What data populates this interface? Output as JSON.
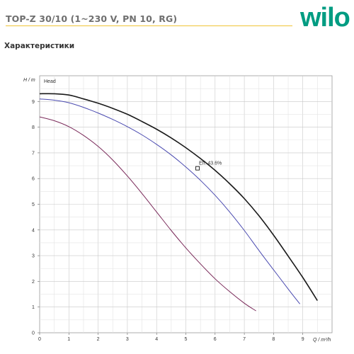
{
  "header": {
    "title": "TOP-Z 30/10 (1~230 V, PN 10, RG)",
    "logo_text": "wilo",
    "accent_color": "#f0c437",
    "logo_color": "#009c82"
  },
  "section": {
    "heading": "Характеристики"
  },
  "chart_data": {
    "type": "line",
    "title": "",
    "ylabel": "H / m",
    "xlabel": "Q / m³/h",
    "legend_label": "Head",
    "xlim": [
      0,
      10
    ],
    "ylim": [
      0,
      10
    ],
    "x_ticks": [
      "0",
      "1",
      "2",
      "3",
      "4",
      "5",
      "6",
      "7",
      "8",
      "9"
    ],
    "y_ticks": [
      "0",
      "1",
      "2",
      "3",
      "4",
      "5",
      "6",
      "7",
      "8",
      "9"
    ],
    "grid": true,
    "series": [
      {
        "color": "#1a1a1a",
        "width": 1.6,
        "x": [
          0,
          0.5,
          1,
          1.5,
          2,
          2.5,
          3,
          3.5,
          4,
          4.5,
          5,
          5.5,
          6,
          6.5,
          7,
          7.5,
          8,
          8.5,
          9,
          9.5
        ],
        "y": [
          9.3,
          9.3,
          9.25,
          9.1,
          8.93,
          8.73,
          8.5,
          8.22,
          7.92,
          7.58,
          7.2,
          6.78,
          6.32,
          5.8,
          5.22,
          4.55,
          3.8,
          2.98,
          2.15,
          1.25
        ]
      },
      {
        "color": "#4a4ab0",
        "width": 1,
        "x": [
          0,
          0.5,
          1,
          1.5,
          2,
          2.5,
          3,
          3.5,
          4,
          4.5,
          5,
          5.5,
          6,
          6.5,
          7,
          7.5,
          8,
          8.5,
          8.9
        ],
        "y": [
          9.1,
          9.05,
          8.95,
          8.77,
          8.55,
          8.3,
          8.02,
          7.7,
          7.33,
          6.92,
          6.45,
          5.93,
          5.35,
          4.7,
          3.98,
          3.2,
          2.45,
          1.7,
          1.12
        ]
      },
      {
        "color": "#7a2a5a",
        "width": 1,
        "x": [
          0,
          0.5,
          1,
          1.5,
          2,
          2.5,
          3,
          3.5,
          4,
          4.5,
          5,
          5.5,
          6,
          6.5,
          7,
          7.4
        ],
        "y": [
          8.4,
          8.25,
          8.02,
          7.68,
          7.25,
          6.72,
          6.1,
          5.42,
          4.7,
          3.98,
          3.3,
          2.68,
          2.1,
          1.6,
          1.15,
          0.85
        ]
      }
    ],
    "annotation": {
      "text": "Eff.  43.6%",
      "x": 5.4,
      "y": 6.4
    }
  }
}
